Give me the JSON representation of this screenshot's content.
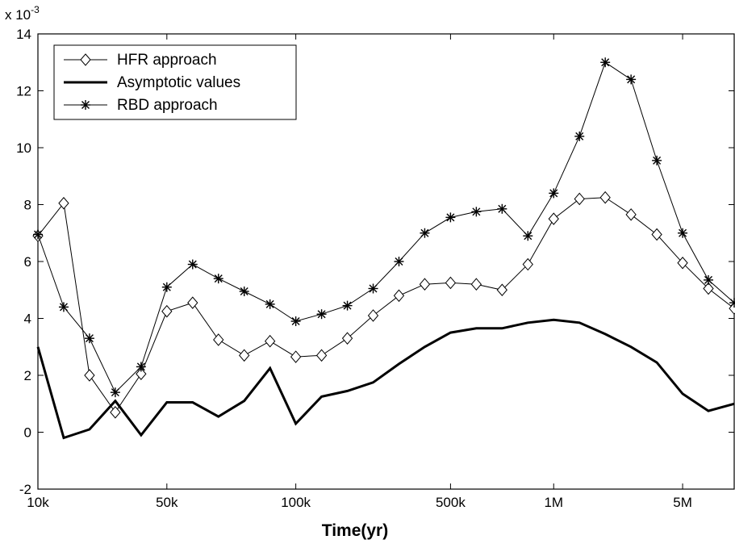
{
  "chart_data": {
    "type": "line",
    "x_ticks": [
      "10k",
      "50k",
      "100k",
      "500k",
      "1M",
      "5M"
    ],
    "x": [
      10000,
      15000,
      20000,
      30000,
      40000,
      50000,
      60000,
      70000,
      80000,
      90000,
      100000,
      125000,
      150000,
      200000,
      300000,
      400000,
      500000,
      600000,
      700000,
      800000,
      1000000,
      1250000,
      1500000,
      2000000,
      3000000,
      4000000,
      5000000,
      7500000
    ],
    "x_scale": "log-like",
    "xlabel": "Time(yr)",
    "ylabel": "",
    "ylim": [
      -2,
      14
    ],
    "y_ticks": [
      "-2",
      "0",
      "2",
      "4",
      "6",
      "8",
      "10",
      "12",
      "14"
    ],
    "y_multiplier": "x 10",
    "y_multiplier_exp": "-3",
    "grid": false,
    "legend_placement": "top-left",
    "series": [
      {
        "name": "HFR approach",
        "marker": "diamond",
        "color": "#000000",
        "values": [
          6.9,
          8.05,
          2.0,
          0.7,
          2.05,
          4.25,
          4.55,
          3.25,
          2.7,
          3.2,
          2.65,
          2.7,
          3.3,
          4.1,
          4.8,
          5.2,
          5.25,
          5.2,
          5.0,
          5.9,
          7.5,
          8.2,
          8.25,
          7.65,
          6.95,
          5.95,
          5.05,
          4.35
        ]
      },
      {
        "name": "Asymptotic values",
        "marker": "none",
        "color": "#000000",
        "values": [
          3.0,
          -0.2,
          0.1,
          1.1,
          -0.1,
          1.05,
          1.05,
          0.55,
          1.1,
          2.25,
          0.3,
          1.25,
          1.45,
          1.75,
          2.4,
          3.0,
          3.5,
          3.65,
          3.65,
          3.85,
          3.95,
          3.85,
          3.45,
          3.0,
          2.45,
          1.35,
          0.75,
          1.0
        ]
      },
      {
        "name": "RBD approach",
        "marker": "star",
        "color": "#000000",
        "values": [
          6.95,
          4.4,
          3.3,
          1.4,
          2.3,
          5.1,
          5.9,
          5.4,
          4.95,
          4.5,
          3.9,
          4.15,
          4.45,
          5.05,
          6.0,
          7.0,
          7.55,
          7.75,
          7.85,
          6.9,
          8.4,
          10.4,
          13.0,
          12.4,
          9.55,
          7.0,
          5.35,
          4.55
        ]
      }
    ]
  }
}
